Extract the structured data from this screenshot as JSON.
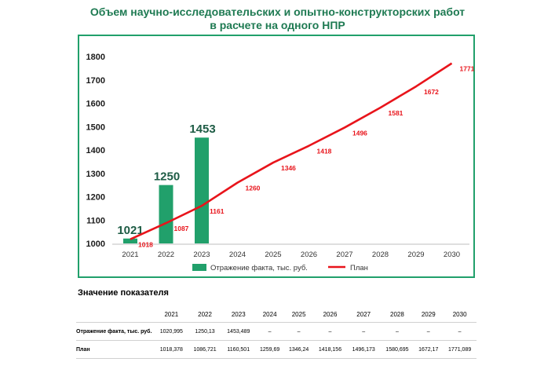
{
  "title_line1": "Объем научно-исследовательских и опытно-конструкторских работ",
  "title_line2": "в расчете на одного НПР",
  "chart_data": {
    "type": "bar+line",
    "categories": [
      "2021",
      "2022",
      "2023",
      "2024",
      "2025",
      "2026",
      "2027",
      "2028",
      "2029",
      "2030"
    ],
    "series": [
      {
        "name": "Отражение факта, тыс. руб.",
        "type": "bar",
        "color": "#21a06b",
        "values": [
          1021,
          1250,
          1453,
          null,
          null,
          null,
          null,
          null,
          null,
          null
        ],
        "labels": [
          "1021",
          "1250",
          "1453",
          "",
          "",
          "",
          "",
          "",
          "",
          ""
        ]
      },
      {
        "name": "План",
        "type": "line",
        "color": "#e8141b",
        "values": [
          1018,
          1087,
          1161,
          1260,
          1346,
          1418,
          1496,
          1581,
          1672,
          1771
        ],
        "labels": [
          "1018",
          "1087",
          "1161",
          "1260",
          "1346",
          "1418",
          "1496",
          "1581",
          "1672",
          "1771"
        ]
      }
    ],
    "yticks": [
      "1000",
      "1100",
      "1200",
      "1300",
      "1400",
      "1500",
      "1600",
      "1700",
      "1800"
    ],
    "ylim": [
      1000,
      1800
    ],
    "legend": "bottom"
  },
  "table": {
    "title": "Значение показателя",
    "years": [
      "2021",
      "2022",
      "2023",
      "2024",
      "2025",
      "2026",
      "2027",
      "2028",
      "2029",
      "2030"
    ],
    "rows": [
      {
        "label": "Отражение факта, тыс. руб.",
        "values": [
          "1020,995",
          "1250,13",
          "1453,489",
          "–",
          "–",
          "–",
          "–",
          "–",
          "–",
          "–"
        ]
      },
      {
        "label": "План",
        "values": [
          "1018,378",
          "1086,721",
          "1160,501",
          "1259,69",
          "1346,24",
          "1418,156",
          "1496,173",
          "1580,695",
          "1672,17",
          "1771,089"
        ]
      }
    ]
  }
}
